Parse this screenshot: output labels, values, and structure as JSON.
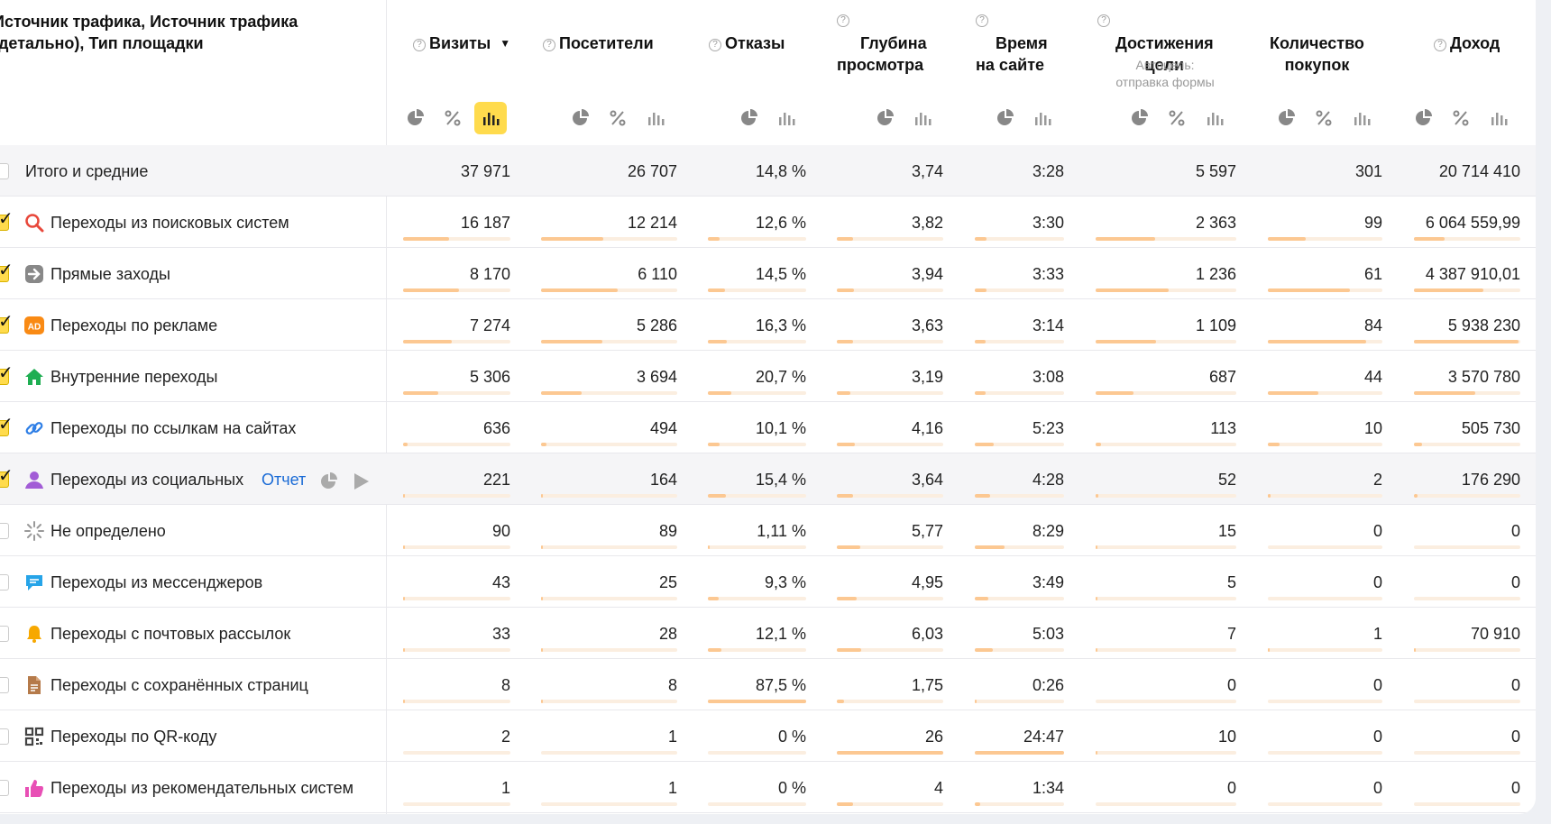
{
  "header": {
    "dimension_title": "Источник трафика, Источник трафика\n(детально), Тип площадки",
    "columns": [
      {
        "key": "visits",
        "label": "Визиты",
        "help": true,
        "sort": "▼"
      },
      {
        "key": "visitors",
        "label": "Посетители",
        "help": true
      },
      {
        "key": "bounce",
        "label": "Отказы",
        "help": true
      },
      {
        "key": "depth",
        "label": "Глубина\nпросмотра",
        "help": true
      },
      {
        "key": "time",
        "label": "Время\nна сайте",
        "help": true
      },
      {
        "key": "goals",
        "label": "Достижения\nцели",
        "help": true,
        "sub": "Автоцель:\nотправка формы"
      },
      {
        "key": "purchases",
        "label": "Количество\nпокупок",
        "help": false
      },
      {
        "key": "revenue",
        "label": "Доход",
        "help": true
      }
    ]
  },
  "totals": {
    "label": "Итого и средние",
    "values": [
      "37 971",
      "26 707",
      "14,8 %",
      "3,74",
      "3:28",
      "5 597",
      "301",
      "20 714 410"
    ]
  },
  "rows": [
    {
      "label": "Переходы из поисковых систем",
      "icon": "search-icon",
      "checked": true,
      "values": [
        "16 187",
        "12 214",
        "12,6 %",
        "3,82",
        "3:30",
        "2 363",
        "99",
        "6 064 559,99"
      ],
      "bars": [
        0.43,
        0.46,
        0.12,
        0.15,
        0.13,
        0.42,
        0.33,
        0.29
      ]
    },
    {
      "label": "Прямые заходы",
      "icon": "arrow-right-icon",
      "checked": true,
      "values": [
        "8 170",
        "6 110",
        "14,5 %",
        "3,94",
        "3:33",
        "1 236",
        "61",
        "4 387 910,01"
      ],
      "bars": [
        0.52,
        0.56,
        0.17,
        0.16,
        0.13,
        0.52,
        0.72,
        0.65
      ]
    },
    {
      "label": "Переходы по рекламе",
      "icon": "ad-icon",
      "checked": true,
      "values": [
        "7 274",
        "5 286",
        "16,3 %",
        "3,63",
        "3:14",
        "1 109",
        "84",
        "5 938 230"
      ],
      "bars": [
        0.45,
        0.45,
        0.19,
        0.15,
        0.12,
        0.43,
        0.86,
        0.98
      ]
    },
    {
      "label": "Внутренние переходы",
      "icon": "home-icon",
      "checked": true,
      "values": [
        "5 306",
        "3 694",
        "20,7 %",
        "3,19",
        "3:08",
        "687",
        "44",
        "3 570 780"
      ],
      "bars": [
        0.33,
        0.3,
        0.24,
        0.13,
        0.12,
        0.27,
        0.44,
        0.58
      ]
    },
    {
      "label": "Переходы по ссылкам на сайтах",
      "icon": "link-icon",
      "checked": true,
      "values": [
        "636",
        "494",
        "10,1 %",
        "4,16",
        "5:23",
        "113",
        "10",
        "505 730"
      ],
      "bars": [
        0.04,
        0.04,
        0.12,
        0.17,
        0.21,
        0.04,
        0.1,
        0.08
      ]
    },
    {
      "label": "Переходы из социальных",
      "icon": "social-user-icon",
      "checked": true,
      "shaded": true,
      "report": "Отчет",
      "values": [
        "221",
        "164",
        "15,4 %",
        "3,64",
        "4:28",
        "52",
        "2",
        "176 290"
      ],
      "bars": [
        0.02,
        0.01,
        0.18,
        0.15,
        0.17,
        0.02,
        0.02,
        0.03
      ]
    },
    {
      "label": "Не определено",
      "icon": "loader-icon",
      "checked": false,
      "values": [
        "90",
        "89",
        "1,11 %",
        "5,77",
        "8:29",
        "15",
        "0",
        "0"
      ],
      "bars": [
        0.01,
        0.01,
        0.01,
        0.22,
        0.33,
        0.01,
        0,
        0
      ]
    },
    {
      "label": "Переходы из мессенджеров",
      "icon": "chat-icon",
      "checked": false,
      "values": [
        "43",
        "25",
        "9,3 %",
        "4,95",
        "3:49",
        "5",
        "0",
        "0"
      ],
      "bars": [
        0.003,
        0.002,
        0.11,
        0.19,
        0.15,
        0.002,
        0,
        0
      ]
    },
    {
      "label": "Переходы с почтовых рассылок",
      "icon": "bell-icon",
      "checked": false,
      "values": [
        "33",
        "28",
        "12,1 %",
        "6,03",
        "5:03",
        "7",
        "1",
        "70 910"
      ],
      "bars": [
        0.003,
        0.002,
        0.14,
        0.23,
        0.2,
        0.003,
        0.01,
        0.01
      ]
    },
    {
      "label": "Переходы с сохранённых страниц",
      "icon": "document-icon",
      "checked": false,
      "values": [
        "8",
        "8",
        "87,5 %",
        "1,75",
        "0:26",
        "0",
        "0",
        "0"
      ],
      "bars": [
        0.001,
        0.001,
        1.0,
        0.07,
        0.02,
        0,
        0,
        0
      ]
    },
    {
      "label": "Переходы по QR-коду",
      "icon": "qr-code-icon",
      "checked": false,
      "values": [
        "2",
        "1",
        "0 %",
        "26",
        "24:47",
        "10",
        "0",
        "0"
      ],
      "bars": [
        0,
        0,
        0,
        1.0,
        1.0,
        0.004,
        0,
        0
      ]
    },
    {
      "label": "Переходы из рекомендательных систем",
      "icon": "thumb-up-icon",
      "checked": false,
      "values": [
        "1",
        "1",
        "0 %",
        "4",
        "1:34",
        "0",
        "0",
        "0"
      ],
      "bars": [
        0,
        0,
        0,
        0.15,
        0.06,
        0,
        0,
        0
      ]
    }
  ],
  "colors": {
    "accent": "#ffdb4d",
    "bar": "#fcc892",
    "bar_track": "#fbeee0",
    "link": "#1a6bd6"
  }
}
